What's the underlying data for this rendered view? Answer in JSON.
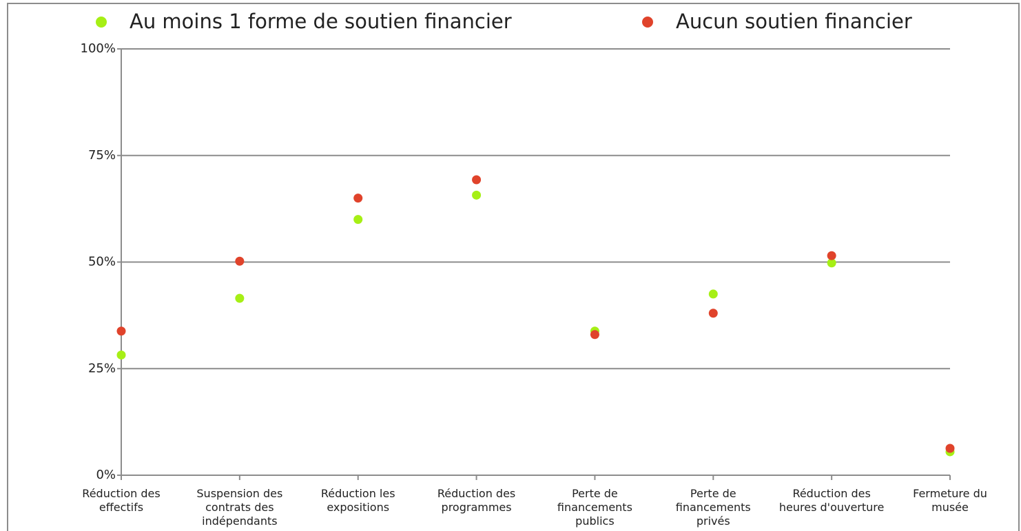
{
  "chart_data": {
    "type": "dot",
    "categories": [
      "Réduction des effectifs",
      "Suspension des contrats des indépendants",
      "Réduction les expositions",
      "Réduction des programmes",
      "Perte de financements publics",
      "Perte de financements privés",
      "Réduction des heures d'ouverture",
      "Fermeture du musée"
    ],
    "series": [
      {
        "name": "Au moins 1 forme de soutien financier",
        "color": "#a6ef15",
        "values": [
          28.2,
          41.5,
          60,
          65.7,
          33.8,
          42.5,
          49.8,
          5.5
        ]
      },
      {
        "name": "Aucun soutien financier",
        "color": "#e0432b",
        "values": [
          33.8,
          50.2,
          65,
          69.3,
          33,
          38,
          51.5,
          6.3
        ]
      }
    ],
    "ylim": [
      0,
      100
    ],
    "yticks": [
      {
        "value": 0,
        "label": "0%"
      },
      {
        "value": 25,
        "label": "25%"
      },
      {
        "value": 50,
        "label": "50%"
      },
      {
        "value": 75,
        "label": "75%"
      },
      {
        "value": 100,
        "label": "100%"
      }
    ],
    "grid": true
  }
}
